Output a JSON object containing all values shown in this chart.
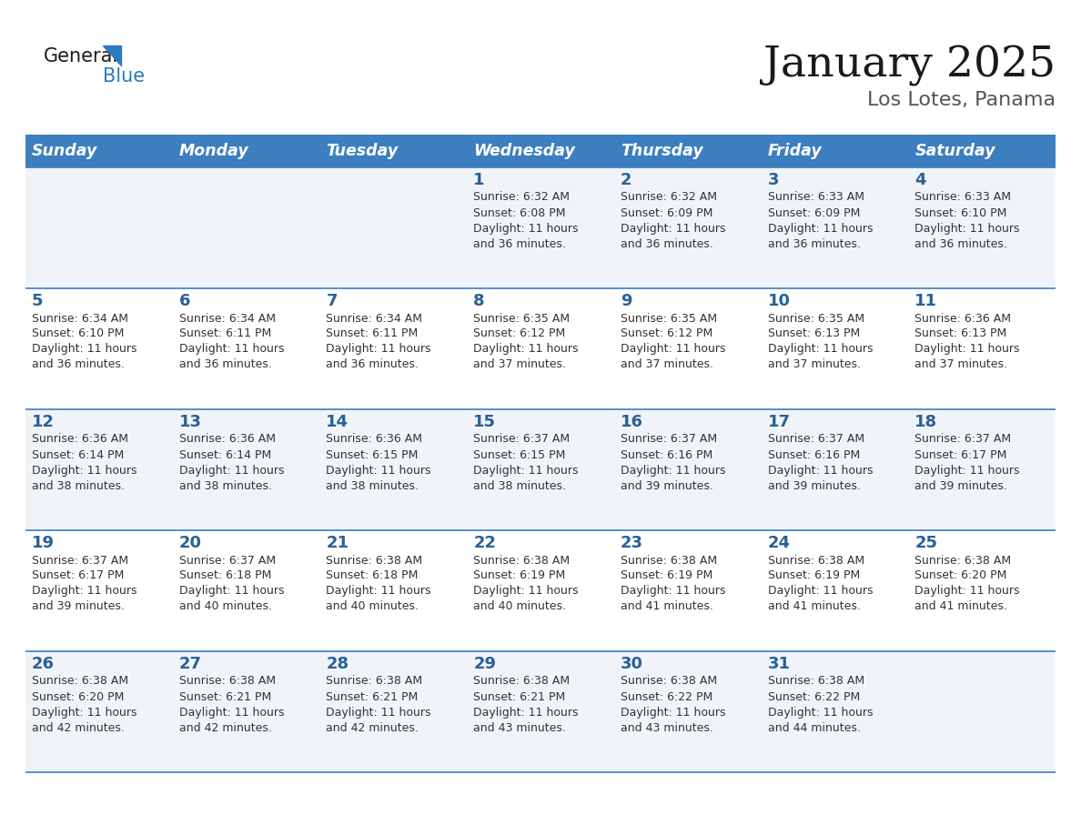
{
  "title": "January 2025",
  "subtitle": "Los Lotes, Panama",
  "header_bg": "#3d7ebf",
  "header_text_color": "#ffffff",
  "day_headers": [
    "Sunday",
    "Monday",
    "Tuesday",
    "Wednesday",
    "Thursday",
    "Friday",
    "Saturday"
  ],
  "cell_bg_light": "#f0f4f8",
  "cell_bg_white": "#ffffff",
  "cell_border_color": "#3d7ebf",
  "day_number_color": "#2a6099",
  "text_color": "#333333",
  "weeks": [
    [
      {
        "day": "",
        "sunrise": "",
        "sunset": "",
        "daylight": ""
      },
      {
        "day": "",
        "sunrise": "",
        "sunset": "",
        "daylight": ""
      },
      {
        "day": "",
        "sunrise": "",
        "sunset": "",
        "daylight": ""
      },
      {
        "day": "1",
        "sunrise": "6:32 AM",
        "sunset": "6:08 PM",
        "daylight": "11 hours and 36 minutes."
      },
      {
        "day": "2",
        "sunrise": "6:32 AM",
        "sunset": "6:09 PM",
        "daylight": "11 hours and 36 minutes."
      },
      {
        "day": "3",
        "sunrise": "6:33 AM",
        "sunset": "6:09 PM",
        "daylight": "11 hours and 36 minutes."
      },
      {
        "day": "4",
        "sunrise": "6:33 AM",
        "sunset": "6:10 PM",
        "daylight": "11 hours and 36 minutes."
      }
    ],
    [
      {
        "day": "5",
        "sunrise": "6:34 AM",
        "sunset": "6:10 PM",
        "daylight": "11 hours and 36 minutes."
      },
      {
        "day": "6",
        "sunrise": "6:34 AM",
        "sunset": "6:11 PM",
        "daylight": "11 hours and 36 minutes."
      },
      {
        "day": "7",
        "sunrise": "6:34 AM",
        "sunset": "6:11 PM",
        "daylight": "11 hours and 36 minutes."
      },
      {
        "day": "8",
        "sunrise": "6:35 AM",
        "sunset": "6:12 PM",
        "daylight": "11 hours and 37 minutes."
      },
      {
        "day": "9",
        "sunrise": "6:35 AM",
        "sunset": "6:12 PM",
        "daylight": "11 hours and 37 minutes."
      },
      {
        "day": "10",
        "sunrise": "6:35 AM",
        "sunset": "6:13 PM",
        "daylight": "11 hours and 37 minutes."
      },
      {
        "day": "11",
        "sunrise": "6:36 AM",
        "sunset": "6:13 PM",
        "daylight": "11 hours and 37 minutes."
      }
    ],
    [
      {
        "day": "12",
        "sunrise": "6:36 AM",
        "sunset": "6:14 PM",
        "daylight": "11 hours and 38 minutes."
      },
      {
        "day": "13",
        "sunrise": "6:36 AM",
        "sunset": "6:14 PM",
        "daylight": "11 hours and 38 minutes."
      },
      {
        "day": "14",
        "sunrise": "6:36 AM",
        "sunset": "6:15 PM",
        "daylight": "11 hours and 38 minutes."
      },
      {
        "day": "15",
        "sunrise": "6:37 AM",
        "sunset": "6:15 PM",
        "daylight": "11 hours and 38 minutes."
      },
      {
        "day": "16",
        "sunrise": "6:37 AM",
        "sunset": "6:16 PM",
        "daylight": "11 hours and 39 minutes."
      },
      {
        "day": "17",
        "sunrise": "6:37 AM",
        "sunset": "6:16 PM",
        "daylight": "11 hours and 39 minutes."
      },
      {
        "day": "18",
        "sunrise": "6:37 AM",
        "sunset": "6:17 PM",
        "daylight": "11 hours and 39 minutes."
      }
    ],
    [
      {
        "day": "19",
        "sunrise": "6:37 AM",
        "sunset": "6:17 PM",
        "daylight": "11 hours and 39 minutes."
      },
      {
        "day": "20",
        "sunrise": "6:37 AM",
        "sunset": "6:18 PM",
        "daylight": "11 hours and 40 minutes."
      },
      {
        "day": "21",
        "sunrise": "6:38 AM",
        "sunset": "6:18 PM",
        "daylight": "11 hours and 40 minutes."
      },
      {
        "day": "22",
        "sunrise": "6:38 AM",
        "sunset": "6:19 PM",
        "daylight": "11 hours and 40 minutes."
      },
      {
        "day": "23",
        "sunrise": "6:38 AM",
        "sunset": "6:19 PM",
        "daylight": "11 hours and 41 minutes."
      },
      {
        "day": "24",
        "sunrise": "6:38 AM",
        "sunset": "6:19 PM",
        "daylight": "11 hours and 41 minutes."
      },
      {
        "day": "25",
        "sunrise": "6:38 AM",
        "sunset": "6:20 PM",
        "daylight": "11 hours and 41 minutes."
      }
    ],
    [
      {
        "day": "26",
        "sunrise": "6:38 AM",
        "sunset": "6:20 PM",
        "daylight": "11 hours and 42 minutes."
      },
      {
        "day": "27",
        "sunrise": "6:38 AM",
        "sunset": "6:21 PM",
        "daylight": "11 hours and 42 minutes."
      },
      {
        "day": "28",
        "sunrise": "6:38 AM",
        "sunset": "6:21 PM",
        "daylight": "11 hours and 42 minutes."
      },
      {
        "day": "29",
        "sunrise": "6:38 AM",
        "sunset": "6:21 PM",
        "daylight": "11 hours and 43 minutes."
      },
      {
        "day": "30",
        "sunrise": "6:38 AM",
        "sunset": "6:22 PM",
        "daylight": "11 hours and 43 minutes."
      },
      {
        "day": "31",
        "sunrise": "6:38 AM",
        "sunset": "6:22 PM",
        "daylight": "11 hours and 44 minutes."
      },
      {
        "day": "",
        "sunrise": "",
        "sunset": "",
        "daylight": ""
      }
    ]
  ]
}
